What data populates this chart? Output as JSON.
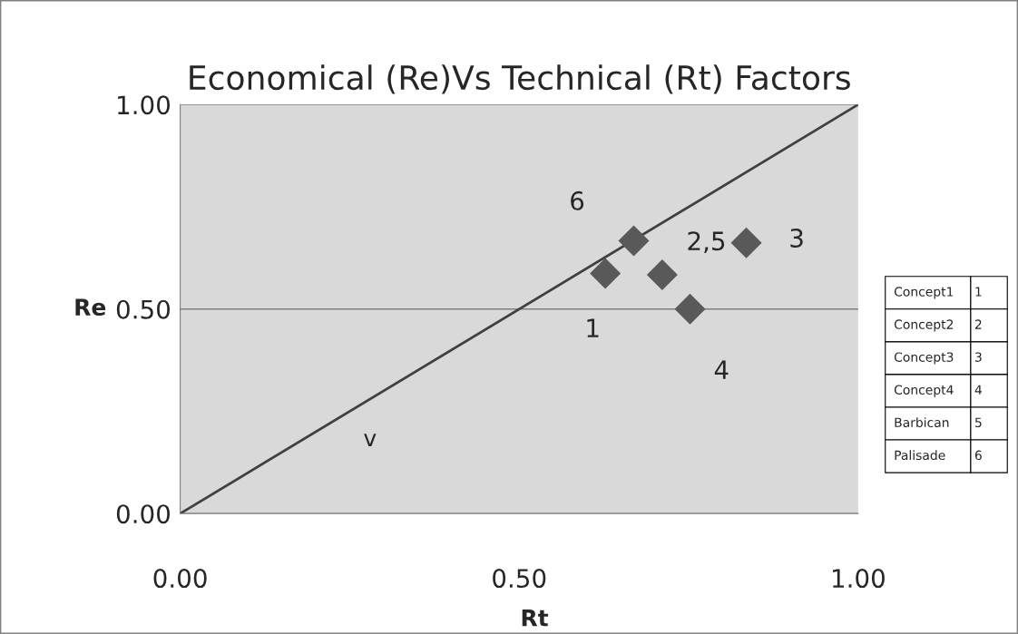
{
  "chart_data": {
    "type": "scatter",
    "title": "Economical (Re)Vs Technical (Rt) Factors",
    "xlabel": "Rt",
    "ylabel": "Re",
    "xlim": [
      0,
      1
    ],
    "ylim": [
      0,
      1
    ],
    "xticks": [
      {
        "value": 0,
        "label": "0.00"
      },
      {
        "value": 0.5,
        "label": "0.50"
      },
      {
        "value": 1,
        "label": "1.00"
      }
    ],
    "yticks": [
      {
        "value": 0,
        "label": "0.00"
      },
      {
        "value": 0.5,
        "label": "0.50"
      },
      {
        "value": 1,
        "label": "1.00"
      }
    ],
    "grid": "y",
    "series": [
      {
        "marker": "diamond",
        "color": "#595959",
        "x": [
          0.627,
          0.711,
          0.835,
          0.752,
          0.669
        ],
        "values": [
          0.587,
          0.584,
          0.662,
          0.5,
          0.667
        ]
      },
      {
        "type": "line",
        "marker": "none",
        "color": "#404040",
        "x": [
          0,
          1
        ],
        "values": [
          0,
          1
        ]
      }
    ],
    "annotations": [
      {
        "text": "1",
        "x": 0.627,
        "y": 0.587
      },
      {
        "text": "2,5",
        "x": 0.711,
        "y": 0.584
      },
      {
        "text": "3",
        "x": 0.835,
        "y": 0.662
      },
      {
        "text": "4",
        "x": 0.752,
        "y": 0.5
      },
      {
        "text": "6",
        "x": 0.669,
        "y": 0.667
      },
      "Concept1",
      "1",
      "Concept2",
      "2",
      "Concept3",
      "3",
      "Concept4",
      "4",
      "Barbican",
      "5",
      "Palisade",
      "6",
      "v"
    ]
  }
}
